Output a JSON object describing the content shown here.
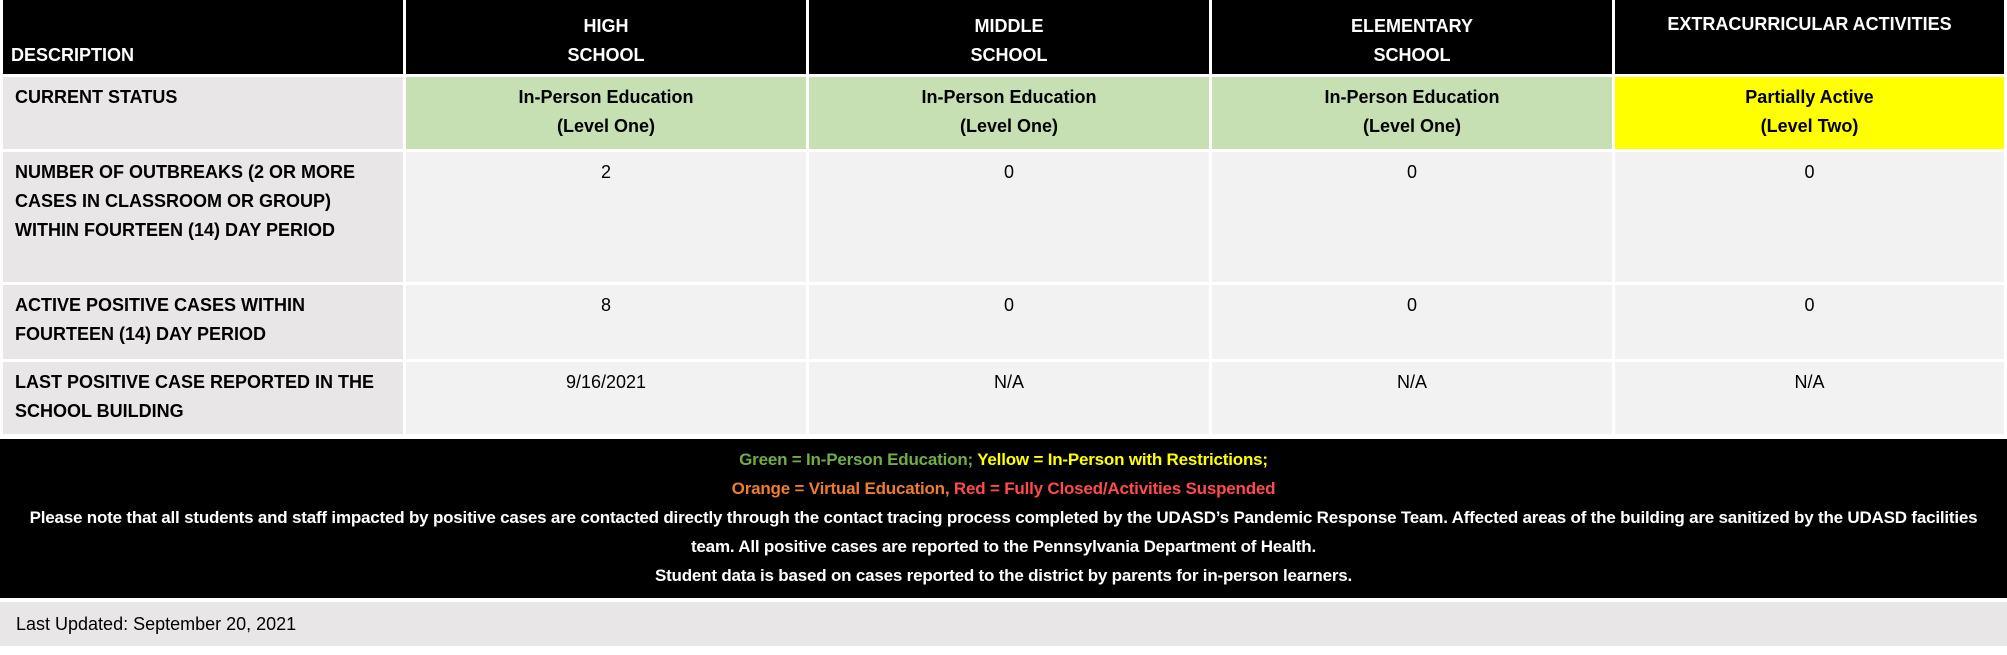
{
  "headers": [
    "DESCRIPTION",
    [
      "HIGH",
      "SCHOOL"
    ],
    [
      "MIDDLE",
      "SCHOOL"
    ],
    [
      "ELEMENTARY",
      "SCHOOL"
    ],
    [
      "EXTRACURRICULAR ACTIVITIES",
      ""
    ]
  ],
  "status": {
    "label": "CURRENT STATUS",
    "cells": [
      [
        "In-Person Education",
        "(Level One)"
      ],
      [
        "In-Person Education",
        "(Level One)"
      ],
      [
        "In-Person Education",
        "(Level One)"
      ],
      [
        "Partially Active",
        "(Level Two)"
      ]
    ]
  },
  "rows": [
    {
      "label": "NUMBER OF OUTBREAKS (2 OR MORE CASES IN CLASSROOM OR GROUP) WITHIN FOURTEEN (14) DAY PERIOD",
      "values": [
        "2",
        "0",
        "0",
        "0"
      ]
    },
    {
      "label": "ACTIVE POSITIVE CASES WITHIN FOURTEEN (14) DAY PERIOD",
      "values": [
        "8",
        "0",
        "0",
        "0"
      ]
    },
    {
      "label": "LAST POSITIVE CASE REPORTED IN THE SCHOOL BUILDING",
      "values": [
        "9/16/2021",
        "N/A",
        "N/A",
        "N/A"
      ]
    }
  ],
  "legend": {
    "green": "Green = In-Person Education;",
    "yellow": "Yellow = In-Person with Restrictions;",
    "orange": "Orange = Virtual Education,",
    "red": "Red = Fully Closed/Activities Suspended"
  },
  "notes": [
    "Please note that all students and staff impacted by positive cases are contacted directly through the contact tracing process completed by the UDASD’s Pandemic Response Team.  Affected areas of the building are sanitized by the UDASD facilities team.  All positive cases are reported to the Pennsylvania Department of Health.",
    "Student data is based on cases reported to the district by parents for in-person learners."
  ],
  "last_updated": "Last Updated: September 20, 2021",
  "colors": {
    "green_cell": "#c6e0b4",
    "yellow_cell": "#ffff00",
    "header": "#000000"
  }
}
